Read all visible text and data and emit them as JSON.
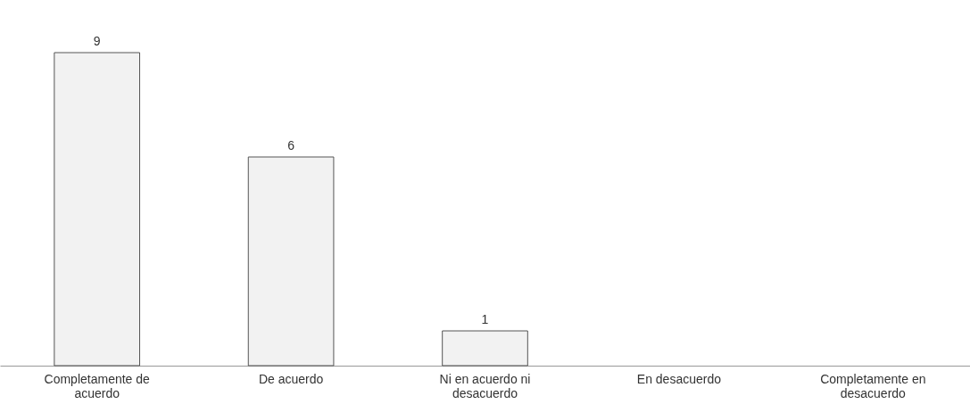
{
  "chart_data": {
    "type": "bar",
    "categories": [
      "Completamente de acuerdo",
      "De acuerdo",
      "Ni en acuerdo ni desacuerdo",
      "En desacuerdo",
      "Completamente en desacuerdo"
    ],
    "values": [
      9,
      6,
      1,
      0,
      0
    ],
    "color": "#f2f2f2",
    "value_labels": [
      "9",
      "6",
      "1",
      null,
      null
    ]
  }
}
